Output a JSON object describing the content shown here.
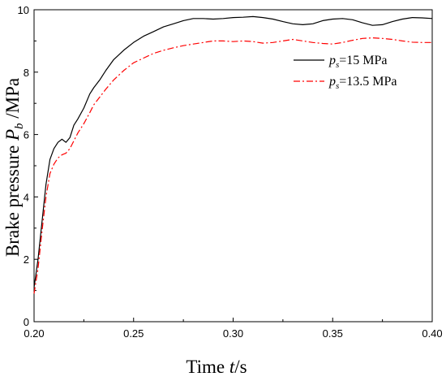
{
  "chart_data": {
    "type": "line",
    "title": "",
    "xlabel": {
      "prefix": "Time ",
      "var": "t",
      "unit": "/s"
    },
    "ylabel": {
      "prefix": "Brake pressure ",
      "var": "P",
      "sub": "b",
      "unit": " /MPa"
    },
    "xlim": [
      0.2,
      0.4
    ],
    "ylim": [
      0,
      10
    ],
    "xticks": [
      0.2,
      0.25,
      0.3,
      0.35,
      0.4
    ],
    "xtick_labels": [
      "0.20",
      "0.25",
      "0.30",
      "0.35",
      "0.40"
    ],
    "yticks": [
      0,
      2,
      4,
      6,
      8,
      10
    ],
    "ytick_labels": [
      "0",
      "2",
      "4",
      "6",
      "8",
      "10"
    ],
    "grid": false,
    "legend_position": "top-right",
    "series": [
      {
        "name": "ps=15 MPa",
        "legend": {
          "var": "p",
          "sub": "s",
          "rest": "=15 MPa"
        },
        "color": "#000000",
        "style": "solid",
        "x": [
          0.2,
          0.202,
          0.204,
          0.206,
          0.208,
          0.21,
          0.212,
          0.214,
          0.216,
          0.218,
          0.22,
          0.222,
          0.225,
          0.228,
          0.23,
          0.233,
          0.236,
          0.24,
          0.245,
          0.25,
          0.255,
          0.26,
          0.265,
          0.27,
          0.275,
          0.28,
          0.285,
          0.29,
          0.295,
          0.3,
          0.305,
          0.31,
          0.315,
          0.32,
          0.325,
          0.33,
          0.335,
          0.34,
          0.345,
          0.35,
          0.355,
          0.36,
          0.365,
          0.37,
          0.375,
          0.38,
          0.385,
          0.39,
          0.395,
          0.4
        ],
        "y": [
          1.1,
          2.0,
          3.2,
          4.4,
          5.2,
          5.55,
          5.75,
          5.85,
          5.75,
          5.9,
          6.3,
          6.5,
          6.85,
          7.3,
          7.5,
          7.75,
          8.05,
          8.4,
          8.7,
          8.95,
          9.15,
          9.3,
          9.45,
          9.55,
          9.65,
          9.72,
          9.72,
          9.7,
          9.72,
          9.75,
          9.76,
          9.78,
          9.75,
          9.7,
          9.62,
          9.55,
          9.52,
          9.55,
          9.65,
          9.7,
          9.72,
          9.68,
          9.58,
          9.5,
          9.52,
          9.62,
          9.7,
          9.75,
          9.74,
          9.72
        ]
      },
      {
        "name": "ps=13.5 MPa",
        "legend": {
          "var": "p",
          "sub": "s",
          "rest": "=13.5 MPa"
        },
        "color": "#ff0000",
        "style": "dashdot",
        "x": [
          0.2,
          0.202,
          0.204,
          0.206,
          0.208,
          0.21,
          0.212,
          0.214,
          0.216,
          0.218,
          0.22,
          0.222,
          0.225,
          0.228,
          0.23,
          0.233,
          0.236,
          0.24,
          0.245,
          0.25,
          0.255,
          0.26,
          0.265,
          0.27,
          0.275,
          0.28,
          0.285,
          0.29,
          0.295,
          0.3,
          0.305,
          0.31,
          0.315,
          0.32,
          0.325,
          0.33,
          0.335,
          0.34,
          0.345,
          0.35,
          0.355,
          0.36,
          0.365,
          0.37,
          0.375,
          0.38,
          0.385,
          0.39,
          0.395,
          0.4
        ],
        "y": [
          0.9,
          1.7,
          2.9,
          4.0,
          4.75,
          5.05,
          5.25,
          5.35,
          5.4,
          5.55,
          5.8,
          6.05,
          6.35,
          6.7,
          6.95,
          7.2,
          7.45,
          7.75,
          8.05,
          8.3,
          8.45,
          8.6,
          8.7,
          8.78,
          8.85,
          8.9,
          8.95,
          9.0,
          9.0,
          8.98,
          9.0,
          8.98,
          8.93,
          8.95,
          9.0,
          9.05,
          9.0,
          8.95,
          8.92,
          8.9,
          8.95,
          9.02,
          9.08,
          9.1,
          9.08,
          9.05,
          9.0,
          8.96,
          8.95,
          8.95
        ]
      }
    ]
  }
}
